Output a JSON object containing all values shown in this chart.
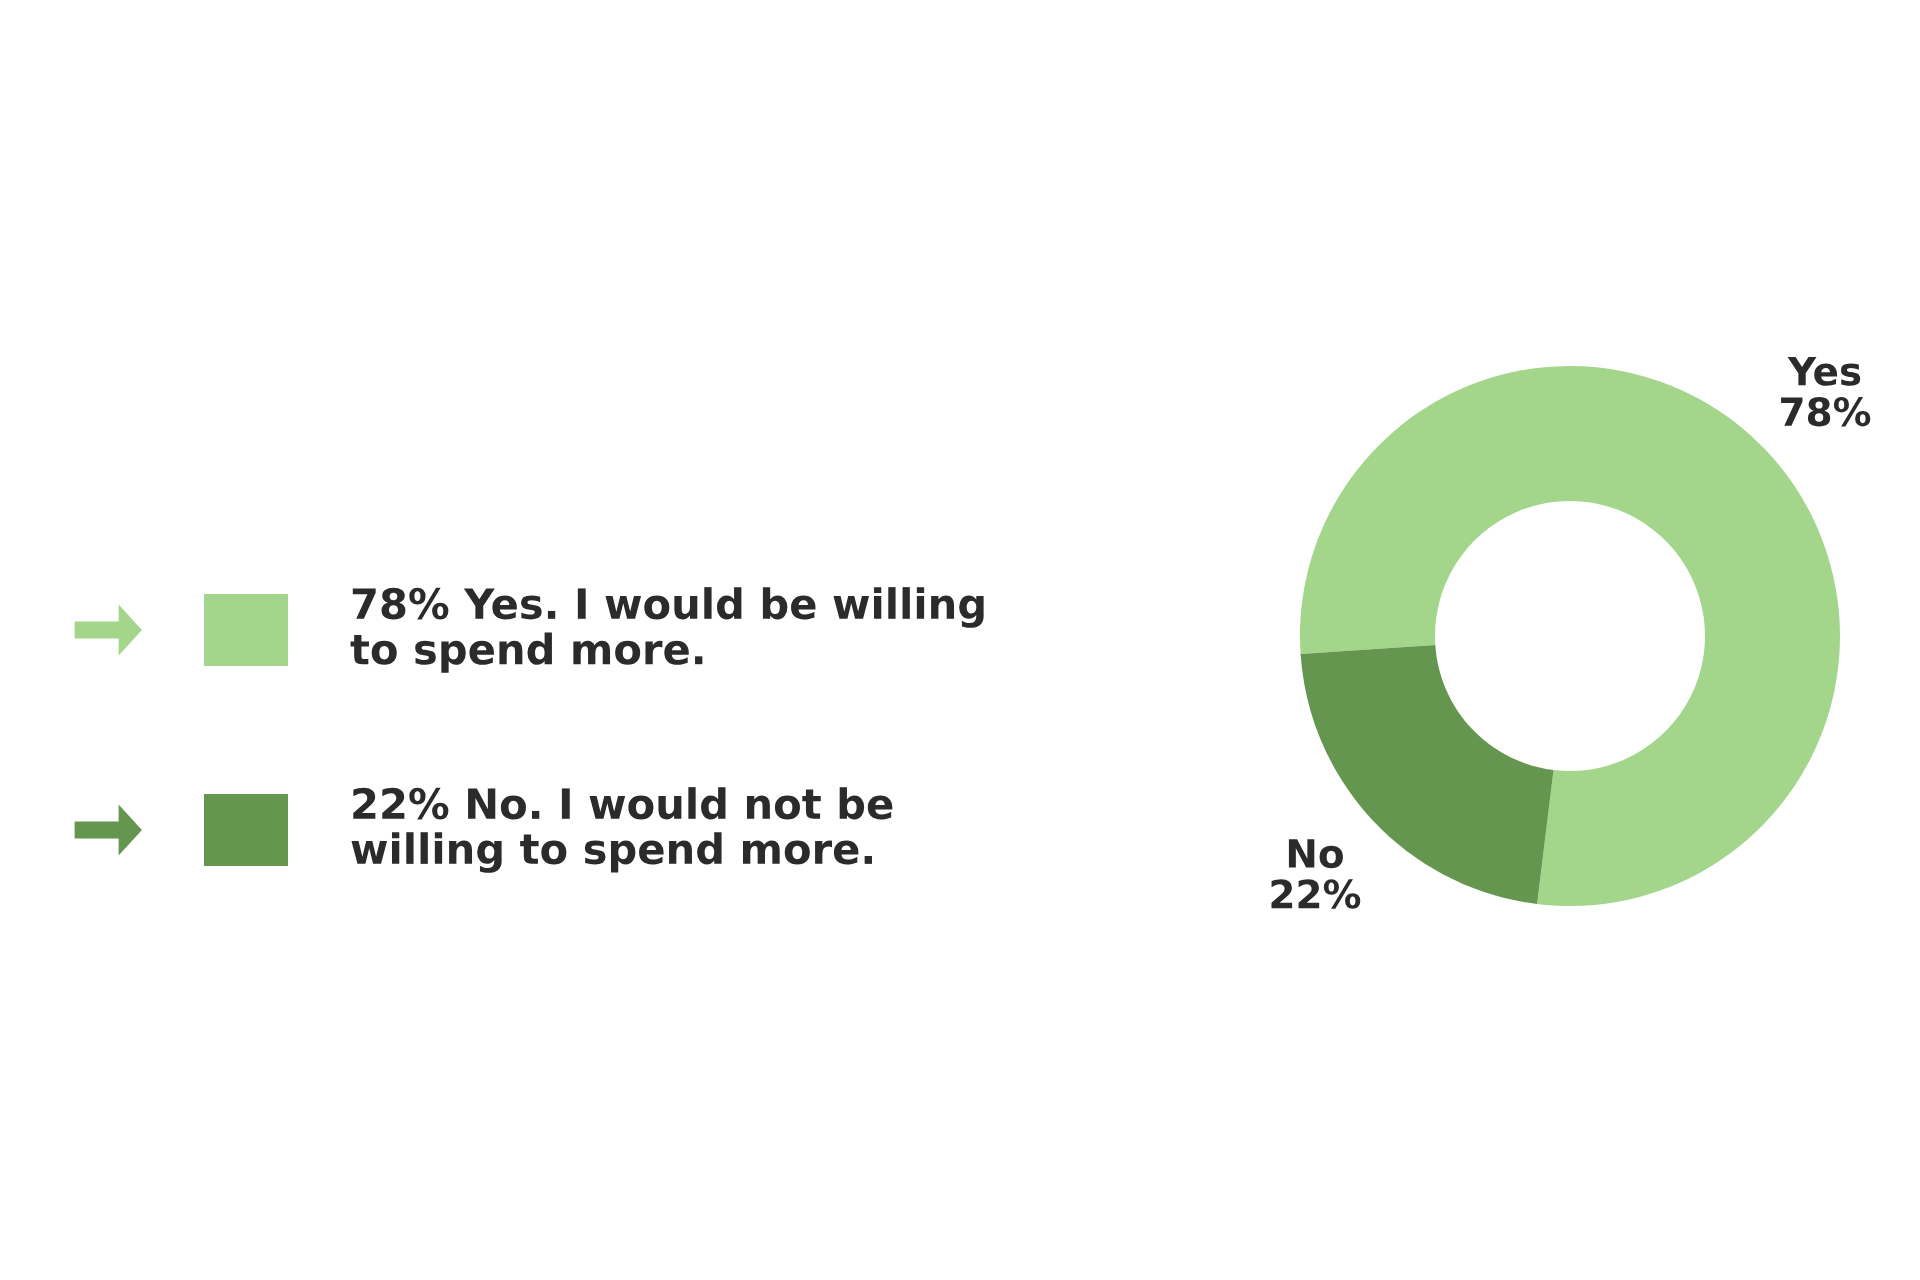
{
  "chart_data": {
    "type": "donut",
    "categories": [
      "Yes",
      "No"
    ],
    "values": [
      78,
      22
    ],
    "value_labels": [
      "78%",
      "22%"
    ],
    "colors": [
      "#a3d68a",
      "#65964f"
    ],
    "annotations": [
      "78% Yes. I would be willing\nto spend more.",
      "22% No. I would not be\nwilling to spend more."
    ]
  }
}
